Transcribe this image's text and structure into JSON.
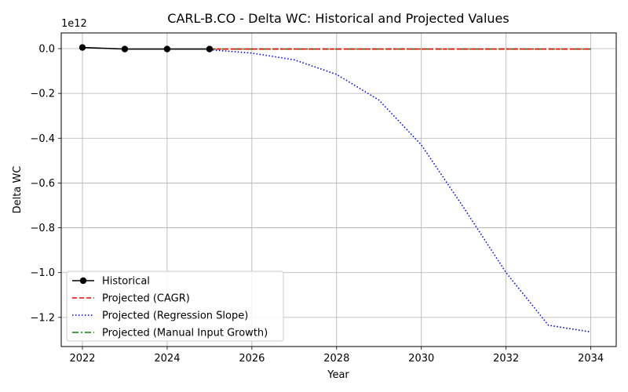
{
  "chart_data": {
    "type": "line",
    "title": "CARL-B.CO - Delta WC: Historical and Projected Values",
    "xlabel": "Year",
    "ylabel": "Delta WC",
    "y_offset_label": "1e12",
    "y_multiplier": 1000000000000.0,
    "xlim": [
      2021.5,
      2034.6
    ],
    "ylim": [
      -1.33,
      0.07
    ],
    "x_ticks": [
      2022,
      2024,
      2026,
      2028,
      2030,
      2032,
      2034
    ],
    "y_ticks": [
      0.0,
      -0.2,
      -0.4,
      -0.6,
      -0.8,
      -1.0,
      -1.2
    ],
    "y_tick_labels": [
      "0.0",
      "−0.2",
      "−0.4",
      "−0.6",
      "−0.8",
      "−1.0",
      "−1.2"
    ],
    "grid": true,
    "legend_position": "lower-left",
    "series": [
      {
        "name": "Historical",
        "color": "#000000",
        "line_style": "solid",
        "marker": "circle",
        "x": [
          2022,
          2023,
          2024,
          2025
        ],
        "y": [
          0.005,
          -0.002,
          -0.002,
          -0.002
        ]
      },
      {
        "name": "Projected (CAGR)",
        "color": "#ff0000",
        "line_style": "dashed",
        "marker": "none",
        "x": [
          2025,
          2026,
          2027,
          2028,
          2029,
          2030,
          2031,
          2032,
          2033,
          2034
        ],
        "y": [
          -0.002,
          -0.002,
          -0.002,
          -0.002,
          -0.002,
          -0.002,
          -0.002,
          -0.002,
          -0.002,
          -0.002
        ]
      },
      {
        "name": "Projected (Regression Slope)",
        "color": "#0000ff",
        "line_style": "dotted",
        "marker": "none",
        "x": [
          2025,
          2026,
          2027,
          2028,
          2029,
          2030,
          2031,
          2032,
          2033,
          2034
        ],
        "y": [
          -0.005,
          -0.02,
          -0.05,
          -0.115,
          -0.23,
          -0.43,
          -0.71,
          -1.0,
          -1.235,
          -1.265
        ]
      },
      {
        "name": "Projected (Manual Input Growth)",
        "color": "#008000",
        "line_style": "dashdot",
        "marker": "none",
        "x": [
          2025,
          2026,
          2027,
          2028,
          2029,
          2030,
          2031,
          2032,
          2033,
          2034
        ],
        "y": [
          -0.002,
          -0.002,
          -0.002,
          -0.002,
          -0.002,
          -0.002,
          -0.002,
          -0.002,
          -0.002,
          -0.002
        ]
      }
    ]
  }
}
